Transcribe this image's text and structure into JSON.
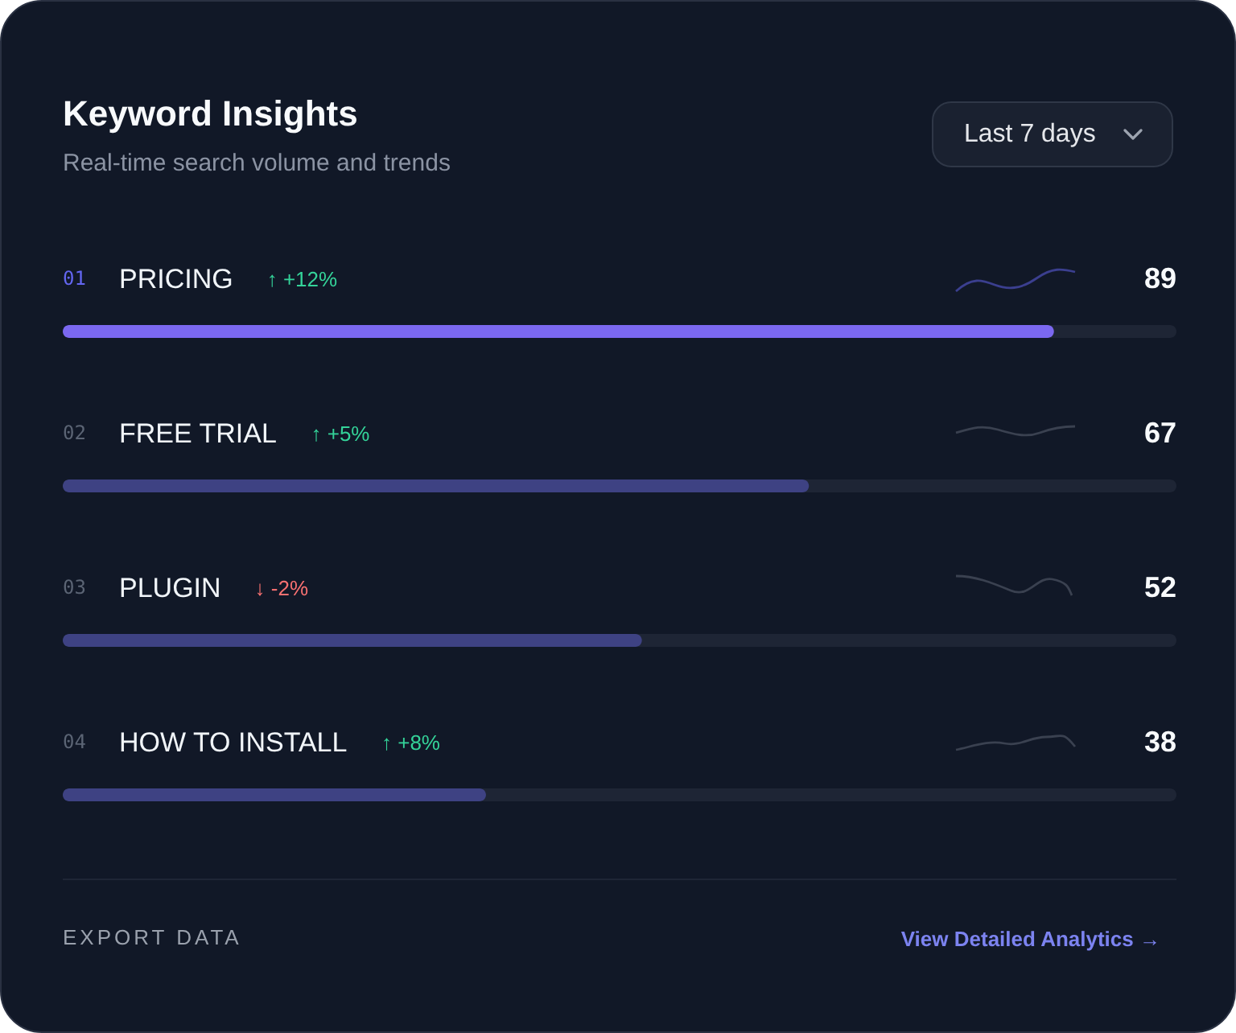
{
  "chart_data": {
    "type": "bar",
    "orientation": "horizontal",
    "title": "Keyword Insights",
    "subtitle": "Real-time search volume and trends",
    "categories": [
      "PRICING",
      "FREE TRIAL",
      "PLUGIN",
      "HOW TO INSTALL"
    ],
    "values": [
      89,
      67,
      52,
      38
    ],
    "colors": [
      "#7b68f0",
      "#3e4283",
      "#3e4283",
      "#3e4283"
    ],
    "xlim": [
      0,
      100
    ],
    "tick_labels": false,
    "data_labels": true,
    "annotations": [
      "01",
      "↑ +12%",
      "02",
      "↑ +5%",
      "03",
      "↓ -2%",
      "04",
      "↑ +8%",
      "Last 7 days",
      "EXPORT DATA",
      "View Detailed Analytics →"
    ]
  }
}
